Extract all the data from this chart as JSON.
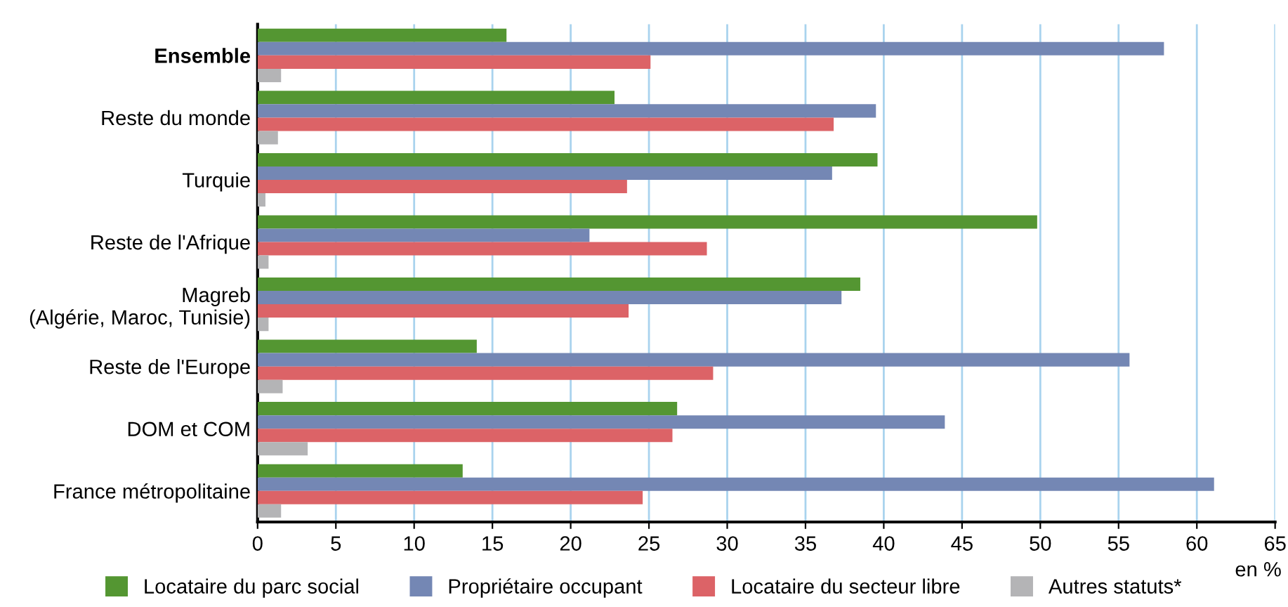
{
  "chart_data": {
    "type": "bar",
    "orientation": "horizontal",
    "xlabel": "en %",
    "categories": [
      "Ensemble",
      "Reste du monde",
      "Turquie",
      "Reste de l'Afrique",
      "Magreb\n(Algérie, Maroc, Tunisie)",
      "Reste de l'Europe",
      "DOM et COM",
      "France métropolitaine"
    ],
    "series": [
      {
        "name": "Locataire du parc social",
        "color": "#549632",
        "values": [
          15.9,
          22.8,
          39.6,
          49.8,
          38.5,
          14.0,
          26.8,
          13.1
        ]
      },
      {
        "name": "Propriétaire occupant",
        "color": "#7487b4",
        "values": [
          57.9,
          39.5,
          36.7,
          21.2,
          37.3,
          55.7,
          43.9,
          61.1
        ]
      },
      {
        "name": "Locataire du secteur libre",
        "color": "#dc6367",
        "values": [
          25.1,
          36.8,
          23.6,
          28.7,
          23.7,
          29.1,
          26.5,
          24.6
        ]
      },
      {
        "name": "Autres statuts*",
        "color": "#b4b4b6",
        "values": [
          1.5,
          1.3,
          0.5,
          0.7,
          0.7,
          1.6,
          3.2,
          1.5
        ]
      }
    ],
    "xlim": [
      0,
      65
    ],
    "xticks": [
      0,
      5,
      10,
      15,
      20,
      25,
      30,
      35,
      40,
      45,
      50,
      55,
      60,
      65
    ],
    "grid": "x",
    "legend": "bottom"
  }
}
